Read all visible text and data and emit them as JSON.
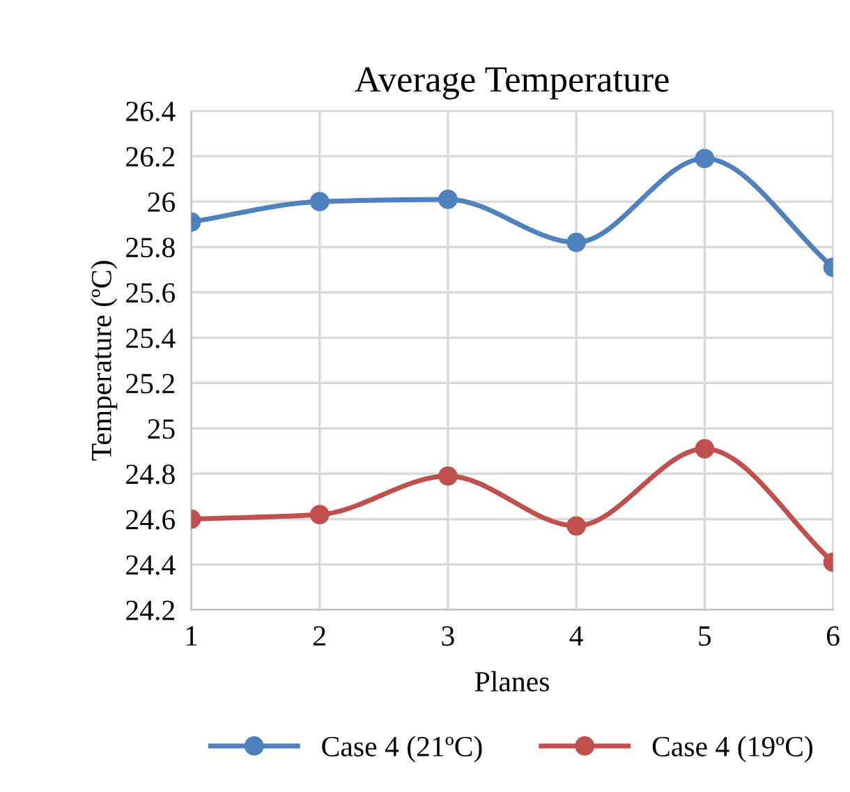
{
  "chart_data": {
    "type": "line",
    "title": "Average Temperature",
    "xlabel": "Planes",
    "ylabel": "Temperature (ºC)",
    "x": [
      1,
      2,
      3,
      4,
      5,
      6
    ],
    "series": [
      {
        "name": "Case 4 (21ºC)",
        "color": "#4f81bd",
        "values": [
          25.91,
          26.0,
          26.01,
          25.82,
          26.19,
          25.71
        ]
      },
      {
        "name": "Case 4 (19ºC)",
        "color": "#c0504d",
        "values": [
          24.6,
          24.62,
          24.79,
          24.57,
          24.91,
          24.41
        ]
      }
    ],
    "xlim": [
      1,
      6
    ],
    "xticks": [
      1,
      2,
      3,
      4,
      5,
      6
    ],
    "ylim": [
      24.2,
      26.4
    ],
    "yticks": [
      {
        "value": 24.2,
        "label": "24.2"
      },
      {
        "value": 24.4,
        "label": "24.4"
      },
      {
        "value": 24.6,
        "label": "24.6"
      },
      {
        "value": 24.8,
        "label": "24.8"
      },
      {
        "value": 25,
        "label": "25"
      },
      {
        "value": 25.2,
        "label": "25.2"
      },
      {
        "value": 25.4,
        "label": "25.4"
      },
      {
        "value": 25.6,
        "label": "25.6"
      },
      {
        "value": 25.8,
        "label": "25.8"
      },
      {
        "value": 26,
        "label": "26"
      },
      {
        "value": 26.2,
        "label": "26.2"
      },
      {
        "value": 26.4,
        "label": "26.4"
      }
    ],
    "grid": true,
    "legend": "bottom",
    "marker": "circle",
    "line_style": "solid"
  }
}
